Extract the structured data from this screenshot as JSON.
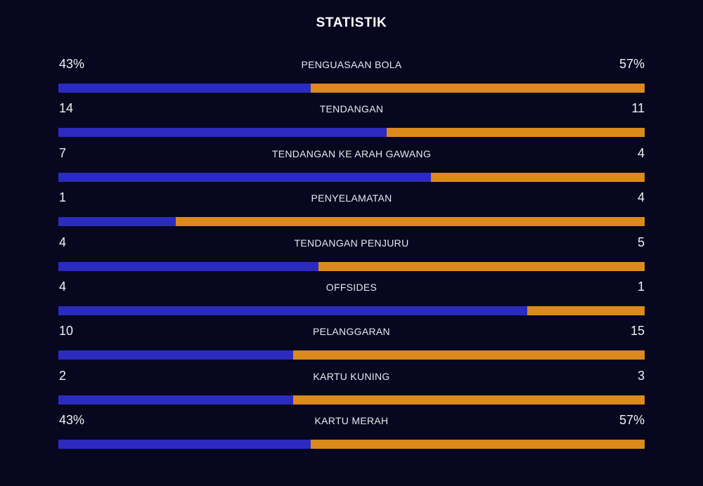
{
  "title": "STATISTIK",
  "colors": {
    "background": "#070720",
    "home_bar": "#2b2bc0",
    "away_bar": "#dc8a1c"
  },
  "stats": [
    {
      "label": "PENGUASAAN BOLA",
      "home": "43%",
      "away": "57%",
      "home_share": 0.43
    },
    {
      "label": "TENDANGAN",
      "home": "14",
      "away": "11",
      "home_share": 0.56
    },
    {
      "label": "TENDANGAN KE ARAH GAWANG",
      "home": "7",
      "away": "4",
      "home_share": 0.636
    },
    {
      "label": "PENYELAMATAN",
      "home": "1",
      "away": "4",
      "home_share": 0.2
    },
    {
      "label": "TENDANGAN PENJURU",
      "home": "4",
      "away": "5",
      "home_share": 0.444
    },
    {
      "label": "OFFSIDES",
      "home": "4",
      "away": "1",
      "home_share": 0.8
    },
    {
      "label": "PELANGGARAN",
      "home": "10",
      "away": "15",
      "home_share": 0.4
    },
    {
      "label": "KARTU KUNING",
      "home": "2",
      "away": "3",
      "home_share": 0.4
    },
    {
      "label": "KARTU MERAH",
      "home": "43%",
      "away": "57%",
      "home_share": 0.43
    }
  ]
}
